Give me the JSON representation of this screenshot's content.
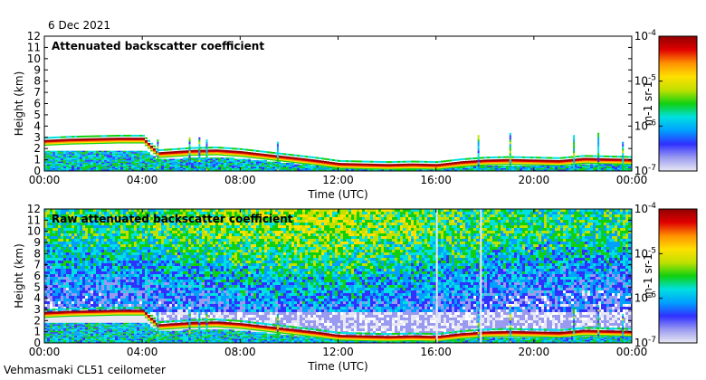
{
  "date": "6 Dec 2021",
  "footer": "Vehmasmaki CL51 ceilometer",
  "colors": {
    "colormap": [
      "#e8e8f4",
      "#9a9af0",
      "#3030ff",
      "#00a0ff",
      "#00e0e0",
      "#10d010",
      "#c0e000",
      "#ffe000",
      "#ff9000",
      "#e00000",
      "#900000"
    ]
  },
  "chart_data": [
    {
      "type": "heatmap",
      "title": "Attenuated backscatter coefficient",
      "xlabel": "Time (UTC)",
      "ylabel": "Height (km)",
      "x_ticks": [
        "00:00",
        "04:00",
        "08:00",
        "12:00",
        "16:00",
        "20:00",
        "00:00"
      ],
      "y_ticks": [
        "0",
        "1",
        "2",
        "3",
        "4",
        "5",
        "6",
        "7",
        "8",
        "9",
        "10",
        "11",
        "12"
      ],
      "xlim_hours": [
        0,
        24
      ],
      "ylim_km": [
        0,
        12
      ],
      "colorbar": {
        "scale": "log",
        "range": [
          1e-07,
          0.0001
        ],
        "ticks": [
          "10-7",
          "10-6",
          "10-5",
          "10-4"
        ],
        "label": "m-1 sr-1"
      },
      "cloud_base_km": {
        "hours": [
          0,
          1,
          2,
          3,
          4,
          4.6,
          6,
          7,
          8,
          9,
          10,
          11,
          12,
          13,
          14,
          15,
          16,
          17,
          18,
          19,
          20,
          21,
          22,
          23,
          24
        ],
        "height": [
          2.3,
          2.4,
          2.45,
          2.5,
          2.5,
          1.2,
          1.4,
          1.45,
          1.3,
          1.05,
          0.8,
          0.55,
          0.25,
          0.2,
          0.15,
          0.2,
          0.15,
          0.4,
          0.55,
          0.6,
          0.55,
          0.5,
          0.7,
          0.65,
          0.6
        ]
      }
    },
    {
      "type": "heatmap",
      "title": "Raw attenuated backscatter coefficient",
      "xlabel": "Time (UTC)",
      "ylabel": "Height (km)",
      "x_ticks": [
        "00:00",
        "04:00",
        "08:00",
        "12:00",
        "16:00",
        "20:00",
        "00:00"
      ],
      "y_ticks": [
        "0",
        "1",
        "2",
        "3",
        "4",
        "5",
        "6",
        "7",
        "8",
        "9",
        "10",
        "11",
        "12"
      ],
      "xlim_hours": [
        0,
        24
      ],
      "ylim_km": [
        0,
        12
      ],
      "colorbar": {
        "scale": "log",
        "range": [
          1e-07,
          0.0001
        ],
        "ticks": [
          "10-7",
          "10-6",
          "10-5",
          "10-4"
        ],
        "label": "m-1 sr-1"
      }
    }
  ]
}
